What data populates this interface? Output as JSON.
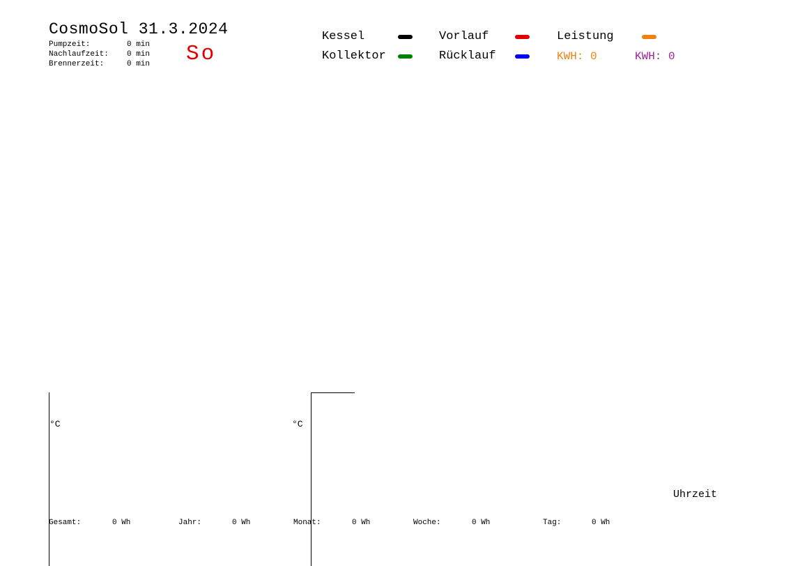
{
  "header": {
    "title": "CosmoSol 31.3.2024",
    "day_label": "So",
    "day_color": "#e00000"
  },
  "stats": [
    {
      "label": "Pumpzeit:",
      "value": "0 min"
    },
    {
      "label": "Nachlaufzeit:",
      "value": "0 min"
    },
    {
      "label": "Brennerzeit:",
      "value": "0 min"
    }
  ],
  "legend": {
    "items": [
      {
        "label": "Kessel",
        "color": "#000000"
      },
      {
        "label": "Vorlauf",
        "color": "#e00000"
      },
      {
        "label": "Leistung",
        "color": "#f08010"
      },
      {
        "label": "Kollektor",
        "color": "#008000"
      },
      {
        "label": "Rücklauf",
        "color": "#0000ee"
      }
    ],
    "kwh": [
      {
        "text": "KWH: 0",
        "color": "#f08010"
      },
      {
        "text": "KWH: 0",
        "color": "#a020a0"
      }
    ]
  },
  "chart_data": {
    "type": "line",
    "title": "CosmoSol 31.3.2024",
    "xlabel": "Uhrzeit",
    "ylabel": "°C",
    "series": [
      {
        "name": "Kessel",
        "color": "#000000",
        "values": []
      },
      {
        "name": "Vorlauf",
        "color": "#e00000",
        "values": []
      },
      {
        "name": "Leistung",
        "color": "#f08010",
        "values": []
      },
      {
        "name": "Kollektor",
        "color": "#008000",
        "values": []
      },
      {
        "name": "Rücklauf",
        "color": "#0000ee",
        "values": []
      }
    ]
  },
  "axes": {
    "left_unit": "°C",
    "right_unit": "°C",
    "xlabel": "Uhrzeit"
  },
  "totals": [
    {
      "label": "Gesamt:",
      "value": "0 Wh"
    },
    {
      "label": "Jahr:",
      "value": "0 Wh"
    },
    {
      "label": "Monat:",
      "value": "0 Wh"
    },
    {
      "label": "Woche:",
      "value": "0 Wh"
    },
    {
      "label": "Tag:",
      "value": "0 Wh"
    }
  ]
}
